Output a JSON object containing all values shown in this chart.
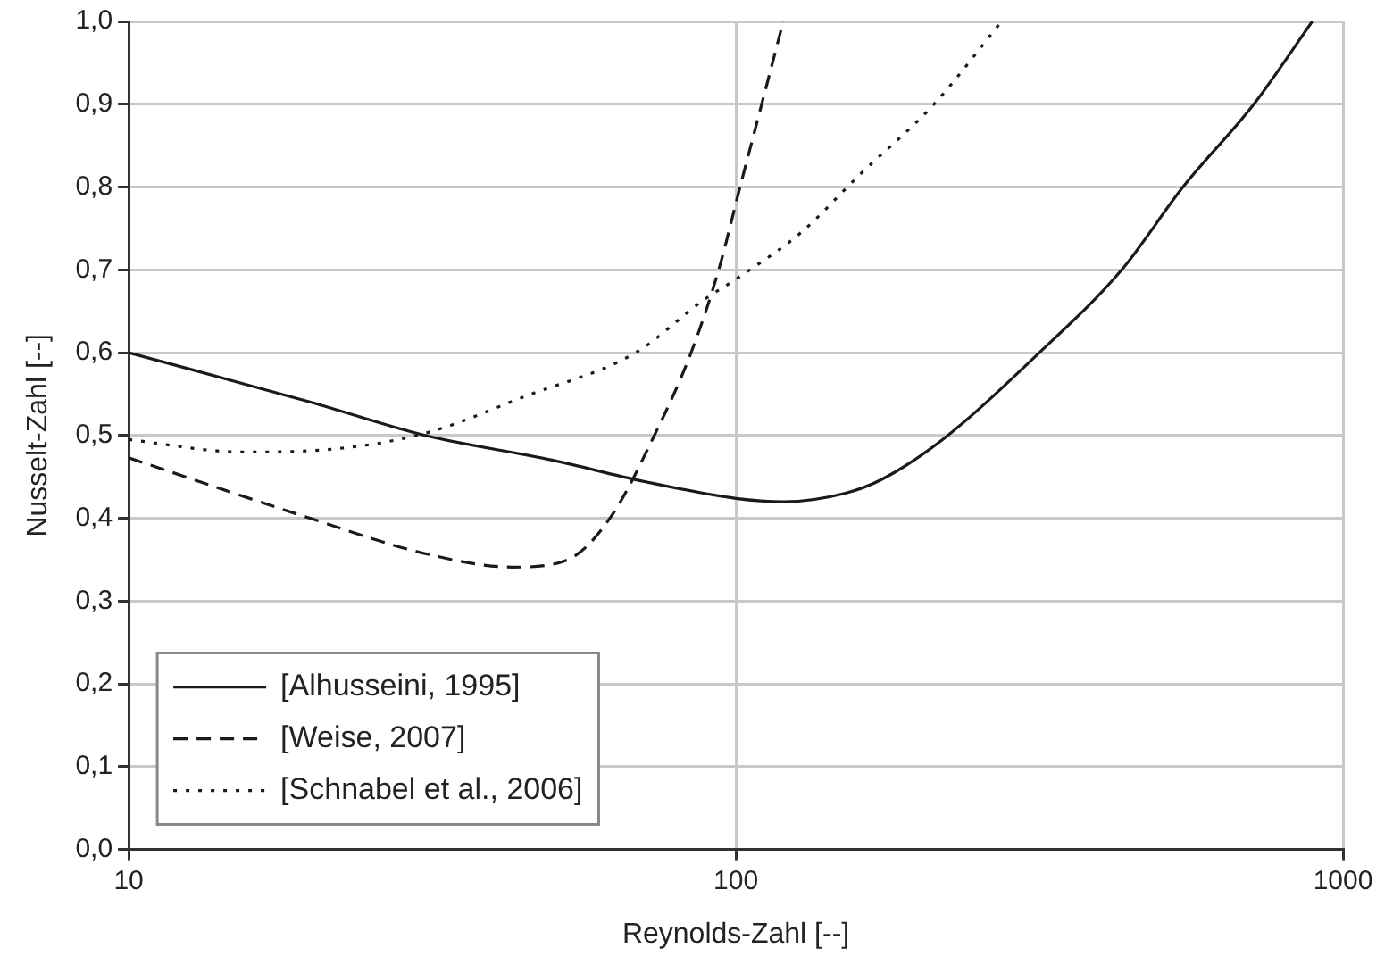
{
  "chart_data": {
    "type": "line",
    "xlabel": "Reynolds-Zahl [--]",
    "ylabel": "Nusselt-Zahl [--]",
    "xlim": [
      10,
      1000
    ],
    "xticks": [
      10,
      100,
      1000
    ],
    "log": "x",
    "ylim": [
      0,
      1
    ],
    "yticks": [
      {
        "value": 0,
        "label": "0,0"
      },
      {
        "value": 0.1,
        "label": "0,1"
      },
      {
        "value": 0.2,
        "label": "0,2"
      },
      {
        "value": 0.3,
        "label": "0,3"
      },
      {
        "value": 0.4,
        "label": "0,4"
      },
      {
        "value": 0.5,
        "label": "0,5"
      },
      {
        "value": 0.6,
        "label": "0,6"
      },
      {
        "value": 0.7,
        "label": "0,7"
      },
      {
        "value": 0.8,
        "label": "0,8"
      },
      {
        "value": 0.9,
        "label": "0,9"
      },
      {
        "value": 1,
        "label": "1,0"
      }
    ],
    "grid": true,
    "legend": "bottom left",
    "marker": "none",
    "series": [
      {
        "name": "[Alhusseini, 1995]",
        "color": "#1a1a1a",
        "line_style": "solid",
        "x": [
          10,
          20,
          30.8,
          50,
          70,
          100,
          120,
          151,
          174,
          219,
          311,
          432,
          545,
          713,
          890
        ],
        "values": [
          0.6,
          0.54,
          0.5,
          0.47,
          0.445,
          0.424,
          0.42,
          0.43,
          0.447,
          0.495,
          0.595,
          0.7,
          0.8,
          0.9,
          1.0
        ]
      },
      {
        "name": "[Weise, 2007]",
        "color": "#1a1a1a",
        "line_style": "dashed",
        "x": [
          10,
          19.9,
          30.9,
          42.9,
          52.9,
          62.3,
          73.3,
          84.4,
          93.7,
          101.6,
          110.3,
          119.7
        ],
        "values": [
          0.473,
          0.4,
          0.357,
          0.341,
          0.35,
          0.402,
          0.499,
          0.6,
          0.7,
          0.8,
          0.9,
          1.0
        ]
      },
      {
        "name": "[Schnabel et al., 2006]",
        "color": "#1a1a1a",
        "line_style": "dotted",
        "x": [
          10,
          15.4,
          21.3,
          30.9,
          44.9,
          68.4,
          88.3,
          101.6,
          128,
          160,
          212,
          274
        ],
        "values": [
          0.495,
          0.48,
          0.483,
          0.503,
          0.547,
          0.6,
          0.663,
          0.692,
          0.745,
          0.815,
          0.9,
          1.0
        ]
      }
    ]
  }
}
